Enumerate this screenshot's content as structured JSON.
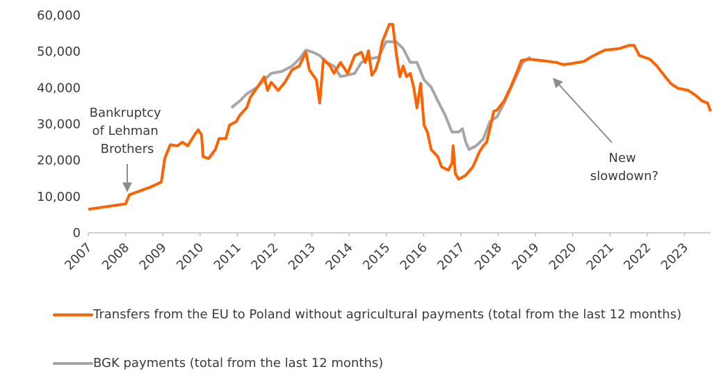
{
  "chart_data": {
    "type": "line",
    "xlim": [
      2007,
      2023.7
    ],
    "xticks": [
      2007,
      2008,
      2009,
      2010,
      2011,
      2012,
      2013,
      2014,
      2015,
      2016,
      2017,
      2018,
      2019,
      2020,
      2021,
      2022,
      2023
    ],
    "ylim": [
      0,
      60000
    ],
    "yticks": [
      0,
      {
        "value": 10000,
        "label": "10,000"
      },
      {
        "value": 20000,
        "label": "20,000"
      },
      {
        "value": 30000,
        "label": "30,000"
      },
      {
        "value": 40000,
        "label": "40,000"
      },
      {
        "value": 50000,
        "label": "50,000"
      },
      {
        "value": 60000,
        "label": "60,000"
      }
    ],
    "grid": false,
    "series": [
      {
        "name": "Transfers from the EU to Poland without agricultural payments (total from the last 12 months)",
        "color": "#ff6200",
        "x": [
          2007.0,
          2008.0,
          2008.1,
          2008.64,
          2008.96,
          2009.05,
          2009.2,
          2009.39,
          2009.52,
          2009.67,
          2009.85,
          2009.95,
          2010.04,
          2010.08,
          2010.23,
          2010.41,
          2010.51,
          2010.69,
          2010.79,
          2010.97,
          2011.07,
          2011.25,
          2011.35,
          2011.54,
          2011.72,
          2011.81,
          2011.91,
          2012.1,
          2012.28,
          2012.47,
          2012.66,
          2012.84,
          2012.93,
          2013.12,
          2013.21,
          2013.31,
          2013.49,
          2013.59,
          2013.77,
          2013.96,
          2014.15,
          2014.33,
          2014.43,
          2014.52,
          2014.61,
          2014.71,
          2014.8,
          2014.89,
          2015.08,
          2015.17,
          2015.26,
          2015.36,
          2015.45,
          2015.54,
          2015.64,
          2015.73,
          2015.82,
          2015.92,
          2016.01,
          2016.1,
          2016.2,
          2016.38,
          2016.48,
          2016.66,
          2016.76,
          2016.79,
          2016.85,
          2016.94,
          2017.13,
          2017.32,
          2017.5,
          2017.6,
          2017.69,
          2017.78,
          2017.88,
          2017.97,
          2018.16,
          2018.34,
          2018.53,
          2018.62,
          2018.81,
          2019.18,
          2019.56,
          2019.74,
          2019.93,
          2020.3,
          2020.49,
          2020.68,
          2020.86,
          2021.24,
          2021.51,
          2021.65,
          2021.79,
          2022.07,
          2022.26,
          2022.45,
          2022.63,
          2022.82,
          2023.1,
          2023.29,
          2023.47,
          2023.62,
          2023.7
        ],
        "values": [
          6500,
          8000,
          10500,
          12500,
          14000,
          20500,
          24300,
          24000,
          25000,
          24000,
          27000,
          28400,
          27000,
          21000,
          20500,
          23000,
          26000,
          26000,
          29700,
          30700,
          32500,
          34500,
          37400,
          40200,
          43000,
          39300,
          41500,
          39300,
          41600,
          45000,
          46000,
          49800,
          45000,
          42200,
          35800,
          47900,
          46000,
          44000,
          47000,
          44000,
          48900,
          49800,
          47000,
          50200,
          43500,
          45000,
          47900,
          52700,
          57500,
          57500,
          49800,
          43100,
          46000,
          43100,
          44000,
          40200,
          34500,
          41200,
          29700,
          27800,
          23000,
          21000,
          18200,
          17300,
          19200,
          24000,
          16300,
          14800,
          15900,
          18200,
          22400,
          24000,
          25000,
          28800,
          33500,
          33900,
          36400,
          40300,
          45000,
          47500,
          47900,
          47500,
          47000,
          46400,
          46600,
          47300,
          48500,
          49500,
          50400,
          50800,
          51700,
          51700,
          48900,
          47900,
          46000,
          43500,
          41200,
          39900,
          39300,
          38000,
          36400,
          35800,
          33500
        ]
      },
      {
        "name": "BGK payments (total from the last 12 months)",
        "color": "#a6a6a6",
        "x": [
          2010.84,
          2011.07,
          2011.25,
          2011.54,
          2011.72,
          2011.91,
          2012.19,
          2012.47,
          2012.66,
          2012.84,
          2013.03,
          2013.21,
          2013.4,
          2013.59,
          2013.77,
          2013.96,
          2014.15,
          2014.33,
          2014.52,
          2014.8,
          2014.99,
          2015.26,
          2015.45,
          2015.64,
          2015.82,
          2016.01,
          2016.2,
          2016.38,
          2016.57,
          2016.76,
          2016.94,
          2017.04,
          2017.13,
          2017.22,
          2017.41,
          2017.6,
          2017.78,
          2017.97,
          2018.16,
          2018.44,
          2018.66,
          2018.87
        ],
        "values": [
          34500,
          36400,
          38300,
          40200,
          42200,
          44000,
          44500,
          46000,
          47900,
          50400,
          49800,
          48900,
          47000,
          46000,
          43100,
          43500,
          44000,
          47000,
          47900,
          48500,
          52700,
          52700,
          50800,
          47000,
          47000,
          42200,
          40200,
          36400,
          32600,
          27800,
          27800,
          28700,
          25000,
          23000,
          24000,
          25900,
          30700,
          32000,
          35800,
          42200,
          47000,
          48500
        ]
      }
    ],
    "annotations": [
      {
        "text": [
          "Bankruptcy",
          "of Lehman",
          "Brothers"
        ]
      },
      {
        "text": [
          "New",
          "slowdown?"
        ]
      }
    ]
  }
}
